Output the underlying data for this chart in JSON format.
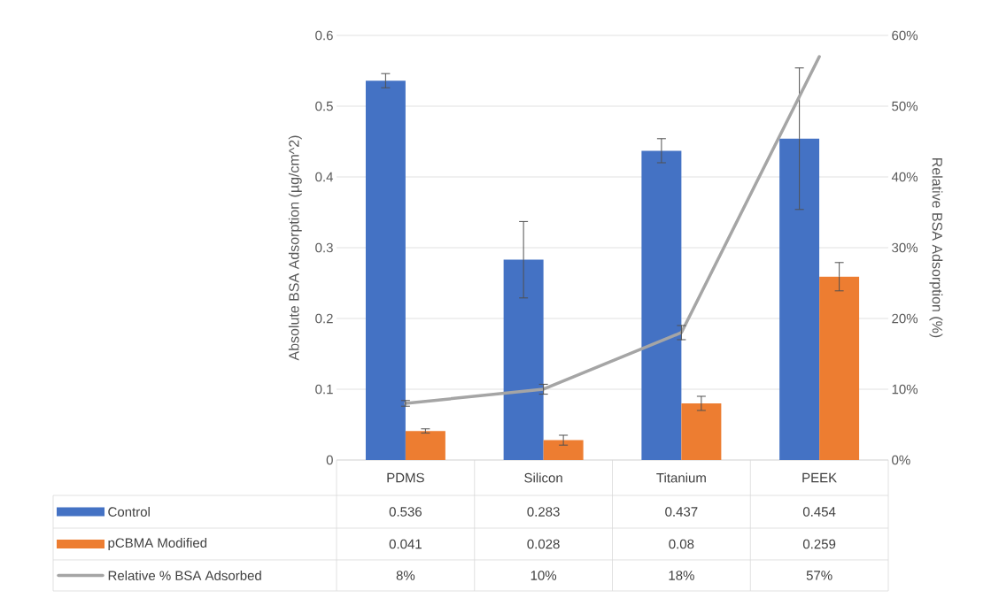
{
  "chart_data": {
    "type": "bar",
    "categories": [
      "PDMS",
      "Silicon",
      "Titanium",
      "PEEK"
    ],
    "ylabel": "Absolute BSA Adsorption (µg/cm^2)",
    "y2label": "Relative BSA Adsorption (%)",
    "ylim": [
      0,
      0.6
    ],
    "yticks": [
      0,
      0.1,
      0.2,
      0.3,
      0.4,
      0.5,
      0.6
    ],
    "y2lim": [
      0,
      60
    ],
    "y2ticks": [
      {
        "value": 0,
        "label": "0%"
      },
      {
        "value": 10,
        "label": "10%"
      },
      {
        "value": 20,
        "label": "20%"
      },
      {
        "value": 30,
        "label": "30%"
      },
      {
        "value": 40,
        "label": "40%"
      },
      {
        "value": 50,
        "label": "50%"
      },
      {
        "value": 60,
        "label": "60%"
      }
    ],
    "grid": "y",
    "legend": "bottom",
    "series": [
      {
        "name": "Control",
        "color": "#4472c4",
        "values": [
          0.536,
          0.283,
          0.437,
          0.454
        ],
        "errors": [
          0.01,
          0.054,
          0.017,
          0.1
        ],
        "value_labels": [
          "0.536",
          "0.283",
          "0.437",
          "0.454"
        ]
      },
      {
        "name": "pCBMA Modified",
        "color": "#ed7d31",
        "values": [
          0.041,
          0.028,
          0.08,
          0.259
        ],
        "errors": [
          0.003,
          0.007,
          0.01,
          0.02
        ],
        "value_labels": [
          "0.041",
          "0.028",
          "0.08",
          "0.259"
        ]
      },
      {
        "name": "Relative % BSA Adsorbed",
        "type": "line",
        "axis": "y2",
        "color": "#a5a5a5",
        "values": [
          8,
          10,
          18,
          57
        ],
        "errors": [
          0.4,
          0.7,
          1,
          null
        ],
        "value_labels": [
          "8%",
          "10%",
          "18%",
          "57%"
        ]
      }
    ]
  }
}
